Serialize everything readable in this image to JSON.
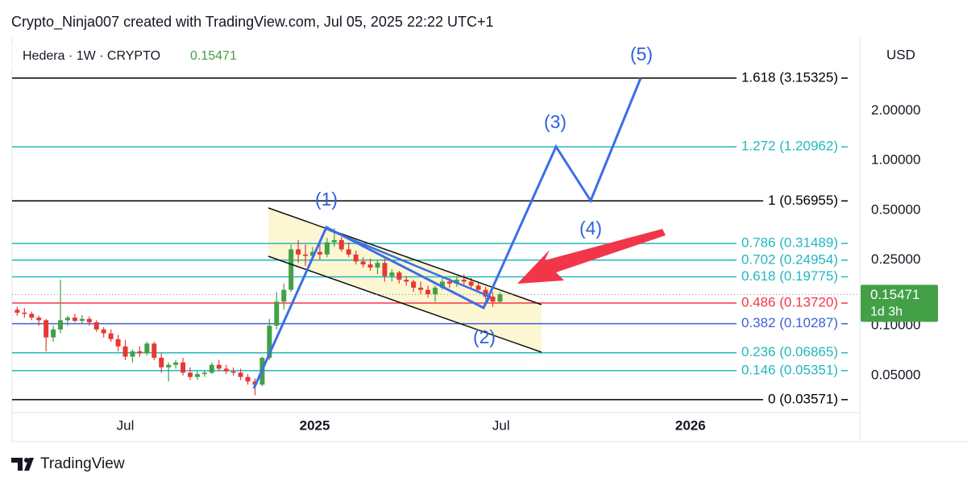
{
  "header": {
    "credit": "Crypto_Ninja007 created with TradingView.com, Jul 05, 2025 22:22 UTC+1"
  },
  "footer": {
    "brand": "TradingView"
  },
  "chart_data": {
    "type": "candlestick",
    "symbol": "Hedera · 1W · CRYPTO",
    "currency": "USD",
    "last_price": 0.15471,
    "countdown": "1d 3h",
    "log_scale": true,
    "up_color": "#43a047",
    "down_color": "#e53935",
    "xlim": [
      "2024-03-13",
      "2026-06-13"
    ],
    "xticks": [
      {
        "value": "2024-07-01",
        "label": "Jul"
      },
      {
        "value": "2025-01-01",
        "label": "2025"
      },
      {
        "value": "2025-07-01",
        "label": "Jul"
      },
      {
        "value": "2026-01-01",
        "label": "2026"
      }
    ],
    "ylim": [
      0.0298,
      5.65
    ],
    "yticks": [
      {
        "value": 2,
        "label": "2.00000"
      },
      {
        "value": 1,
        "label": "1.00000"
      },
      {
        "value": 0.5,
        "label": "0.50000"
      },
      {
        "value": 0.25,
        "label": "0.25000"
      },
      {
        "value": 0.1,
        "label": "0.10000"
      },
      {
        "value": 0.05,
        "label": "0.05000"
      }
    ],
    "fib_levels": [
      {
        "label": "1.618 (3.15325)",
        "value": 3.15325,
        "color": "#000000"
      },
      {
        "label": "1.272 (1.20962)",
        "value": 1.20962,
        "color": "#22b8c0"
      },
      {
        "label": "1 (0.56955)",
        "value": 0.56955,
        "color": "#000000"
      },
      {
        "label": "0.786 (0.31489)",
        "value": 0.31489,
        "color": "#22b8c0"
      },
      {
        "label": "0.702 (0.24954)",
        "value": 0.24954,
        "color": "#22b8c0"
      },
      {
        "label": "0.618 (0.19775)",
        "value": 0.19775,
        "color": "#22b8c0"
      },
      {
        "label": "0.486 (0.13720)",
        "value": 0.1372,
        "color": "#f23645"
      },
      {
        "label": "0.382 (0.10287)",
        "value": 0.10287,
        "color": "#3d5fd9"
      },
      {
        "label": "0.236 (0.06865)",
        "value": 0.06865,
        "color": "#22b8c0"
      },
      {
        "label": "0.146 (0.05351)",
        "value": 0.05351,
        "color": "#22b8c0"
      },
      {
        "label": "0 (0.03571)",
        "value": 0.03571,
        "color": "#000000"
      }
    ],
    "waves": [
      "(1)",
      "(2)",
      "(3)",
      "(4)",
      "(5)"
    ],
    "dates": [
      "2024-03-18",
      "2024-03-25",
      "2024-04-01",
      "2024-04-08",
      "2024-04-15",
      "2024-04-22",
      "2024-04-29",
      "2024-05-06",
      "2024-05-13",
      "2024-05-20",
      "2024-05-27",
      "2024-06-03",
      "2024-06-10",
      "2024-06-17",
      "2024-06-24",
      "2024-07-01",
      "2024-07-08",
      "2024-07-15",
      "2024-07-22",
      "2024-07-29",
      "2024-08-05",
      "2024-08-12",
      "2024-08-19",
      "2024-08-26",
      "2024-09-02",
      "2024-09-09",
      "2024-09-16",
      "2024-09-23",
      "2024-09-30",
      "2024-10-07",
      "2024-10-14",
      "2024-10-21",
      "2024-10-28",
      "2024-11-04",
      "2024-11-11",
      "2024-11-18",
      "2024-11-25",
      "2024-12-02",
      "2024-12-09",
      "2024-12-16",
      "2024-12-23",
      "2024-12-30",
      "2025-01-06",
      "2025-01-13",
      "2025-01-20",
      "2025-01-27",
      "2025-02-03",
      "2025-02-10",
      "2025-02-17",
      "2025-02-24",
      "2025-03-03",
      "2025-03-10",
      "2025-03-17",
      "2025-03-24",
      "2025-03-31",
      "2025-04-07",
      "2025-04-14",
      "2025-04-21",
      "2025-04-28",
      "2025-05-05",
      "2025-05-12",
      "2025-05-19",
      "2025-05-26",
      "2025-06-02",
      "2025-06-09",
      "2025-06-16",
      "2025-06-23",
      "2025-06-30"
    ],
    "ohlc": [
      [
        0.125,
        0.13,
        0.115,
        0.12
      ],
      [
        0.12,
        0.128,
        0.112,
        0.118
      ],
      [
        0.118,
        0.122,
        0.108,
        0.112
      ],
      [
        0.112,
        0.115,
        0.1,
        0.108
      ],
      [
        0.108,
        0.11,
        0.07,
        0.085
      ],
      [
        0.085,
        0.1,
        0.08,
        0.095
      ],
      [
        0.095,
        0.19,
        0.09,
        0.108
      ],
      [
        0.108,
        0.115,
        0.1,
        0.112
      ],
      [
        0.112,
        0.118,
        0.105,
        0.107
      ],
      [
        0.107,
        0.116,
        0.103,
        0.11
      ],
      [
        0.11,
        0.114,
        0.1,
        0.105
      ],
      [
        0.105,
        0.108,
        0.092,
        0.095
      ],
      [
        0.095,
        0.098,
        0.085,
        0.09
      ],
      [
        0.09,
        0.095,
        0.08,
        0.083
      ],
      [
        0.083,
        0.088,
        0.07,
        0.075
      ],
      [
        0.075,
        0.082,
        0.062,
        0.065
      ],
      [
        0.065,
        0.072,
        0.06,
        0.07
      ],
      [
        0.07,
        0.075,
        0.065,
        0.068
      ],
      [
        0.068,
        0.08,
        0.066,
        0.078
      ],
      [
        0.078,
        0.08,
        0.062,
        0.064
      ],
      [
        0.064,
        0.068,
        0.052,
        0.056
      ],
      [
        0.056,
        0.06,
        0.046,
        0.058
      ],
      [
        0.058,
        0.062,
        0.055,
        0.06
      ],
      [
        0.06,
        0.064,
        0.05,
        0.052
      ],
      [
        0.052,
        0.056,
        0.047,
        0.049
      ],
      [
        0.049,
        0.053,
        0.047,
        0.051
      ],
      [
        0.051,
        0.054,
        0.049,
        0.052
      ],
      [
        0.052,
        0.06,
        0.051,
        0.058
      ],
      [
        0.058,
        0.062,
        0.053,
        0.055
      ],
      [
        0.055,
        0.058,
        0.051,
        0.053
      ],
      [
        0.053,
        0.056,
        0.05,
        0.052
      ],
      [
        0.052,
        0.055,
        0.047,
        0.049
      ],
      [
        0.049,
        0.051,
        0.044,
        0.046
      ],
      [
        0.046,
        0.048,
        0.038,
        0.044
      ],
      [
        0.044,
        0.065,
        0.043,
        0.064
      ],
      [
        0.064,
        0.11,
        0.062,
        0.1
      ],
      [
        0.1,
        0.16,
        0.095,
        0.14
      ],
      [
        0.14,
        0.18,
        0.125,
        0.165
      ],
      [
        0.165,
        0.31,
        0.16,
        0.29
      ],
      [
        0.29,
        0.33,
        0.24,
        0.27
      ],
      [
        0.27,
        0.31,
        0.23,
        0.265
      ],
      [
        0.265,
        0.3,
        0.25,
        0.28
      ],
      [
        0.28,
        0.32,
        0.25,
        0.27
      ],
      [
        0.27,
        0.34,
        0.26,
        0.32
      ],
      [
        0.32,
        0.39,
        0.3,
        0.33
      ],
      [
        0.33,
        0.345,
        0.28,
        0.29
      ],
      [
        0.29,
        0.32,
        0.26,
        0.27
      ],
      [
        0.27,
        0.285,
        0.235,
        0.245
      ],
      [
        0.245,
        0.26,
        0.225,
        0.235
      ],
      [
        0.235,
        0.255,
        0.215,
        0.225
      ],
      [
        0.225,
        0.25,
        0.205,
        0.24
      ],
      [
        0.24,
        0.255,
        0.185,
        0.2
      ],
      [
        0.2,
        0.22,
        0.185,
        0.21
      ],
      [
        0.21,
        0.215,
        0.18,
        0.19
      ],
      [
        0.19,
        0.2,
        0.175,
        0.185
      ],
      [
        0.185,
        0.19,
        0.16,
        0.17
      ],
      [
        0.17,
        0.185,
        0.155,
        0.165
      ],
      [
        0.165,
        0.175,
        0.148,
        0.155
      ],
      [
        0.155,
        0.175,
        0.14,
        0.17
      ],
      [
        0.17,
        0.195,
        0.165,
        0.185
      ],
      [
        0.185,
        0.195,
        0.17,
        0.18
      ],
      [
        0.18,
        0.2,
        0.172,
        0.19
      ],
      [
        0.19,
        0.205,
        0.175,
        0.185
      ],
      [
        0.185,
        0.195,
        0.165,
        0.175
      ],
      [
        0.175,
        0.185,
        0.158,
        0.165
      ],
      [
        0.165,
        0.172,
        0.145,
        0.15
      ],
      [
        0.15,
        0.16,
        0.13,
        0.14
      ],
      [
        0.14,
        0.16,
        0.138,
        0.155
      ]
    ]
  }
}
